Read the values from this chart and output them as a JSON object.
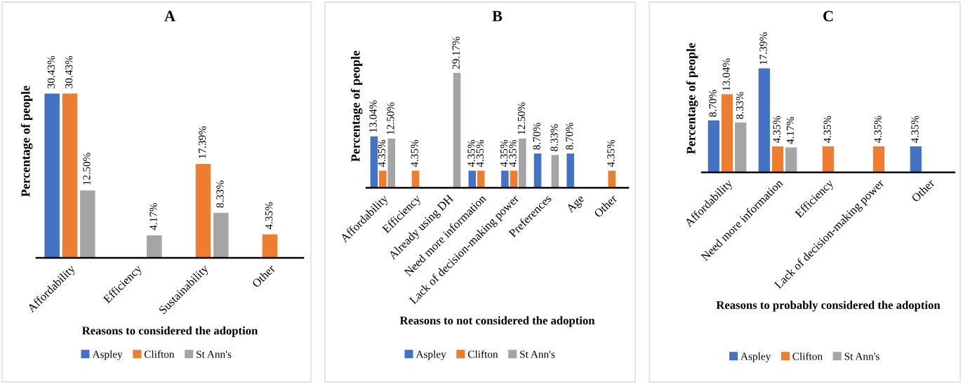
{
  "chart_data": [
    {
      "type": "bar",
      "title": "A",
      "xlabel": "Reasons to considered the adoption",
      "ylabel": "Percentage of people",
      "legend": "bottom",
      "grid": false,
      "categories": [
        "Affordability",
        "Efficiency",
        "Sustainability",
        "Other"
      ],
      "series": [
        {
          "name": "Aspley",
          "color": "#4472c4",
          "values": [
            30.43,
            null,
            null,
            null
          ],
          "value_labels": [
            "30.43%",
            null,
            null,
            null
          ]
        },
        {
          "name": "Clifton",
          "color": "#ed7d31",
          "values": [
            30.43,
            null,
            17.39,
            4.35
          ],
          "value_labels": [
            "30.43%",
            null,
            "17.39%",
            "4.35%"
          ]
        },
        {
          "name": "St Ann's",
          "color": "#a5a5a5",
          "values": [
            12.5,
            4.17,
            8.33,
            null
          ],
          "value_labels": [
            "12.50%",
            "4.17%",
            "8.33%",
            null
          ]
        }
      ]
    },
    {
      "type": "bar",
      "title": "B",
      "xlabel": "Reasons to not considered the adoption",
      "ylabel": "Percentage of people",
      "legend": "bottom",
      "grid": false,
      "categories": [
        "Affordability",
        "Efficiency",
        "Already using DH",
        "Need more information",
        "Lack of decision-making power",
        "Preferences",
        "Age",
        "Other"
      ],
      "series": [
        {
          "name": "Aspley",
          "color": "#4472c4",
          "values": [
            13.04,
            null,
            null,
            4.35,
            4.35,
            8.7,
            8.7,
            null
          ],
          "value_labels": [
            "13.04%",
            null,
            null,
            "4.35%",
            "4.35%",
            "8.70%",
            "8.70%",
            null
          ]
        },
        {
          "name": "Clifton",
          "color": "#ed7d31",
          "values": [
            4.35,
            4.35,
            null,
            4.35,
            4.35,
            null,
            null,
            4.35
          ],
          "value_labels": [
            "4.35%",
            "4.35%",
            null,
            "4.35%",
            "4.35%",
            null,
            null,
            "4.35%"
          ]
        },
        {
          "name": "St Ann's",
          "color": "#a5a5a5",
          "values": [
            12.5,
            null,
            29.17,
            null,
            12.5,
            8.33,
            null,
            null
          ],
          "value_labels": [
            "12.50%",
            null,
            "29.17%",
            null,
            "12.50%",
            "8.33%",
            null,
            null
          ]
        }
      ]
    },
    {
      "type": "bar",
      "title": "C",
      "xlabel": "Reasons to probably considered the adoption",
      "ylabel": "Percentage of people",
      "legend": "bottom",
      "grid": false,
      "categories": [
        "Affordability",
        "Need more information",
        "Efficiency",
        "Lack of decision-making power",
        "Other"
      ],
      "series": [
        {
          "name": "Aspley",
          "color": "#4472c4",
          "values": [
            8.7,
            17.39,
            null,
            null,
            4.35
          ],
          "value_labels": [
            "8.70%",
            "17.39%",
            null,
            null,
            "4.35%"
          ]
        },
        {
          "name": "Clifton",
          "color": "#ed7d31",
          "values": [
            13.04,
            4.35,
            4.35,
            4.35,
            null
          ],
          "value_labels": [
            "13.04%",
            "4.35%",
            "4.35%",
            "4.35%",
            null
          ]
        },
        {
          "name": "St Ann's",
          "color": "#a5a5a5",
          "values": [
            8.33,
            4.17,
            null,
            null,
            null
          ],
          "value_labels": [
            "8.33%",
            "4.17%",
            null,
            null,
            null
          ]
        }
      ]
    }
  ]
}
